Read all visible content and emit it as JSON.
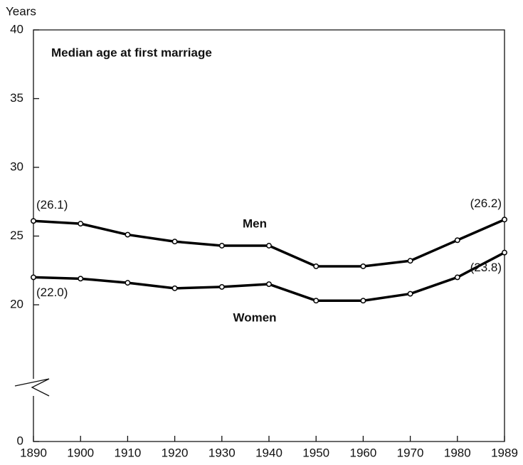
{
  "chart_data": {
    "type": "line",
    "title": "Median age at first marriage",
    "y_label": "Years",
    "categories": [
      "1890",
      "1900",
      "1910",
      "1920",
      "1930",
      "1940",
      "1950",
      "1960",
      "1970",
      "1980",
      "1989"
    ],
    "series": [
      {
        "name": "Men",
        "color": "#000000",
        "values": [
          26.1,
          25.9,
          25.1,
          24.6,
          24.3,
          24.3,
          22.8,
          22.8,
          23.2,
          24.7,
          26.2
        ],
        "value_labels": [
          "(26.1)",
          null,
          null,
          null,
          null,
          null,
          null,
          null,
          null,
          null,
          "(26.2)"
        ]
      },
      {
        "name": "Women",
        "color": "#000000",
        "values": [
          22.0,
          21.9,
          21.6,
          21.2,
          21.3,
          21.5,
          20.3,
          20.3,
          20.8,
          22.0,
          23.8
        ],
        "value_labels": [
          "(22.0)",
          null,
          null,
          null,
          null,
          null,
          null,
          null,
          null,
          null,
          "(23.8)"
        ]
      }
    ],
    "ylim": [
      0,
      40
    ],
    "yticks": [
      0,
      20,
      25,
      30,
      35,
      40
    ],
    "y_break": [
      0,
      20
    ],
    "grid": false
  }
}
